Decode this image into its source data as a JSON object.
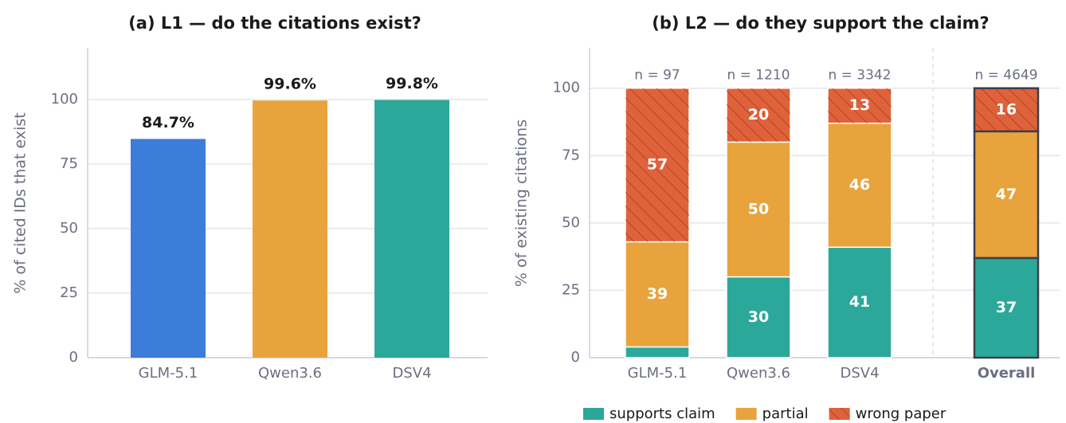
{
  "chart_data": [
    {
      "type": "bar",
      "title": "(a) L1 — do the citations exist?",
      "y_label": "% of cited IDs that exist",
      "categories": [
        "GLM-5.1",
        "Qwen3.6",
        "DSV4"
      ],
      "values": [
        84.7,
        99.6,
        99.8
      ],
      "value_labels": [
        "84.7%",
        "99.6%",
        "99.8%"
      ],
      "colors": [
        "#3b7dd8",
        "#e8a33d",
        "#2ca89a"
      ],
      "ylim": [
        0,
        120
      ],
      "yticks": [
        0,
        25,
        50,
        75,
        100
      ],
      "grid": true
    },
    {
      "type": "stacked_bar",
      "title": "(b) L2 — do they support the claim?",
      "y_label": "% of existing citations",
      "categories": [
        "GLM-5.1",
        "Qwen3.6",
        "DSV4",
        "Overall"
      ],
      "series": [
        {
          "name": "supports claim",
          "color": "#2ca89a",
          "values": [
            4,
            30,
            41,
            37
          ]
        },
        {
          "name": "partial",
          "color": "#e8a33d",
          "values": [
            39,
            50,
            46,
            47
          ]
        },
        {
          "name": "wrong paper",
          "color": "#e0623a",
          "hatch": true,
          "values": [
            57,
            20,
            13,
            16
          ]
        }
      ],
      "annotations": [
        "n = 97",
        "n = 1210",
        "n = 3342",
        "n = 4649"
      ],
      "ylim": [
        0,
        115
      ],
      "yticks": [
        0,
        25,
        50,
        75,
        100
      ],
      "grid": true,
      "legend": "bottom"
    }
  ]
}
